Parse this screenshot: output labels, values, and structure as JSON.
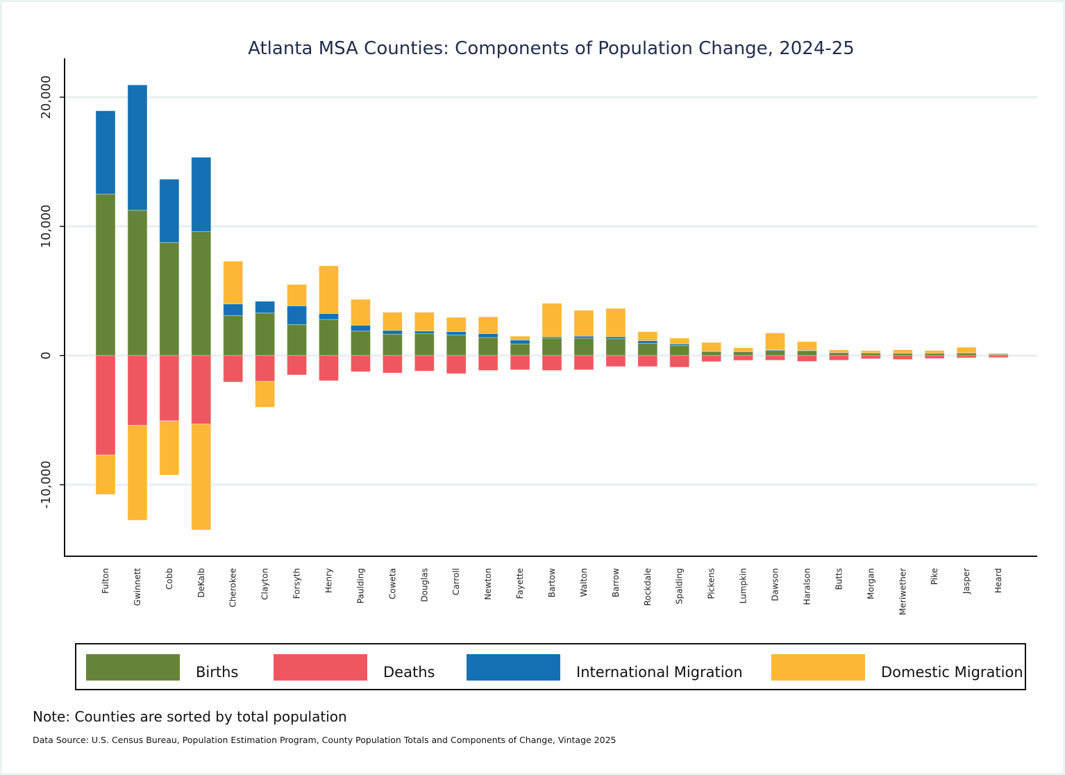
{
  "chart_data": {
    "type": "bar",
    "stacked": true,
    "title": "Atlanta MSA Counties: Components of Population Change, 2024-25",
    "xlabel": "",
    "ylabel": "",
    "ylim": [
      -15500,
      23000
    ],
    "yticks": [
      -10000,
      0,
      10000,
      20000
    ],
    "ytick_labels": [
      "-10,000",
      "0",
      "10,000",
      "20,000"
    ],
    "grid": true,
    "legend_position": "bottom",
    "categories": [
      "Fulton",
      "Gwinnett",
      "Cobb",
      "DeKalb",
      "Cherokee",
      "Clayton",
      "Forsyth",
      "Henry",
      "Paulding",
      "Coweta",
      "Douglas",
      "Carroll",
      "Newton",
      "Fayette",
      "Bartow",
      "Walton",
      "Barrow",
      "Rockdale",
      "Spalding",
      "Pickens",
      "Lumpkin",
      "Dawson",
      "Haralson",
      "Butts",
      "Morgan",
      "Meriwether",
      "Pike",
      "Jasper",
      "Heard"
    ],
    "series": [
      {
        "name": "Births",
        "color": "#668437",
        "values": [
          12500,
          11250,
          8750,
          9600,
          3100,
          3300,
          2400,
          2800,
          1900,
          1650,
          1700,
          1600,
          1400,
          900,
          1350,
          1350,
          1300,
          950,
          770,
          320,
          300,
          400,
          380,
          230,
          200,
          180,
          180,
          200,
          100
        ]
      },
      {
        "name": "Deaths",
        "color": "#ef5760",
        "values": [
          -7700,
          -5400,
          -5050,
          -5300,
          -2050,
          -2000,
          -1500,
          -1950,
          -1250,
          -1350,
          -1200,
          -1400,
          -1150,
          -1100,
          -1150,
          -1100,
          -850,
          -850,
          -900,
          -470,
          -370,
          -360,
          -450,
          -360,
          -250,
          -300,
          -230,
          -180,
          -150
        ]
      },
      {
        "name": "International Migration",
        "color": "#1570b4",
        "values": [
          6450,
          9700,
          4900,
          5750,
          900,
          900,
          1450,
          450,
          450,
          300,
          200,
          250,
          300,
          300,
          100,
          150,
          150,
          200,
          130,
          20,
          30,
          50,
          20,
          10,
          10,
          10,
          10,
          10,
          5
        ]
      },
      {
        "name": "Domestic Migration",
        "color": "#fdb736",
        "values": [
          -3050,
          -7350,
          -4200,
          -8200,
          3300,
          -2000,
          1650,
          3700,
          2000,
          1400,
          1450,
          1100,
          1300,
          300,
          2600,
          2000,
          2200,
          700,
          450,
          680,
          270,
          1300,
          680,
          200,
          170,
          250,
          200,
          430,
          70
        ]
      }
    ]
  },
  "legend": {
    "items": [
      {
        "label": "Births",
        "color": "#668437"
      },
      {
        "label": "Deaths",
        "color": "#ef5760"
      },
      {
        "label": "International Migration",
        "color": "#1570b4"
      },
      {
        "label": "Domestic Migration",
        "color": "#fdb736"
      }
    ]
  },
  "footer": {
    "note": "Note: Counties are sorted by total population",
    "source": "Data Source: U.S. Census Bureau, Population Estimation Program, County Population Totals and Components of Change, Vintage 2025"
  }
}
